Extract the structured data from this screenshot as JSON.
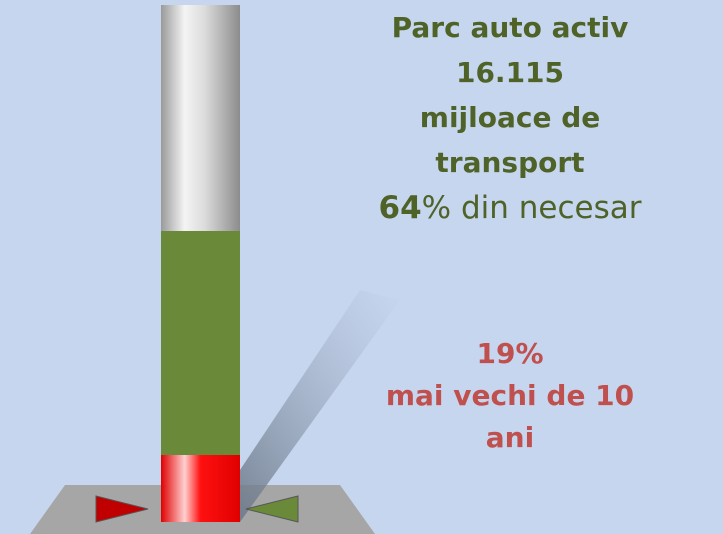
{
  "headline": {
    "lines": [
      "Parc auto activ",
      "16.115",
      "mijloace de",
      "transport"
    ]
  },
  "share": {
    "value": "64",
    "rest": "% din necesar"
  },
  "old": {
    "lines": [
      "19%",
      "mai vechi de 10",
      "ani"
    ]
  }
}
